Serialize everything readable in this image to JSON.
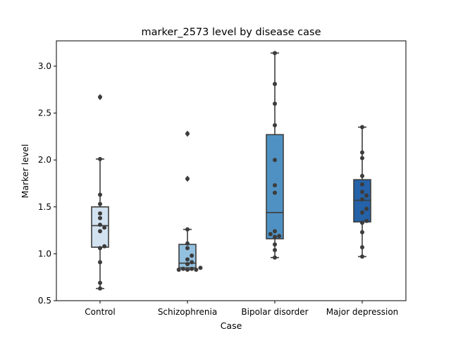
{
  "chart_data": {
    "type": "box",
    "title": "marker_2573 level by disease case",
    "xlabel": "Case",
    "ylabel": "Marker level",
    "ylim": [
      0.5,
      3.27
    ],
    "yticks": [
      0.5,
      1.0,
      1.5,
      2.0,
      2.5,
      3.0
    ],
    "ytick_labels": [
      "0.5",
      "1.0",
      "1.5",
      "2.0",
      "2.5",
      "3.0"
    ],
    "grid": false,
    "categories": [
      "Control",
      "Schizophrenia",
      "Bipolar disorder",
      "Major depression"
    ],
    "colors": [
      "#d3e2f1",
      "#93c0df",
      "#4f91c3",
      "#2562a8"
    ],
    "boxes": [
      {
        "q1": 1.07,
        "median": 1.3,
        "q3": 1.5,
        "whisker_low": 0.63,
        "whisker_high": 2.01,
        "outliers": [
          2.67
        ]
      },
      {
        "q1": 0.85,
        "median": 0.9,
        "q3": 1.1,
        "whisker_low": 0.83,
        "whisker_high": 1.26,
        "outliers": [
          1.8,
          2.28
        ]
      },
      {
        "q1": 1.16,
        "median": 1.44,
        "q3": 2.27,
        "whisker_low": 0.96,
        "whisker_high": 3.14,
        "outliers": []
      },
      {
        "q1": 1.34,
        "median": 1.57,
        "q3": 1.79,
        "whisker_low": 0.97,
        "whisker_high": 2.35,
        "outliers": []
      }
    ],
    "points": [
      [
        0.63,
        0.69,
        0.91,
        1.06,
        1.08,
        1.24,
        1.28,
        1.31,
        1.38,
        1.43,
        1.53,
        1.63,
        2.01,
        2.67
      ],
      [
        0.83,
        0.83,
        0.83,
        0.84,
        0.84,
        0.85,
        0.89,
        0.91,
        0.94,
        0.98,
        1.06,
        1.11,
        1.26,
        1.8,
        2.28
      ],
      [
        0.96,
        1.04,
        1.1,
        1.18,
        1.19,
        1.21,
        1.24,
        1.65,
        1.73,
        2.0,
        2.37,
        2.6,
        2.81,
        3.14
      ],
      [
        0.97,
        1.07,
        1.23,
        1.33,
        1.35,
        1.44,
        1.48,
        1.58,
        1.62,
        1.66,
        1.74,
        1.83,
        2.02,
        2.08,
        2.35
      ]
    ]
  }
}
